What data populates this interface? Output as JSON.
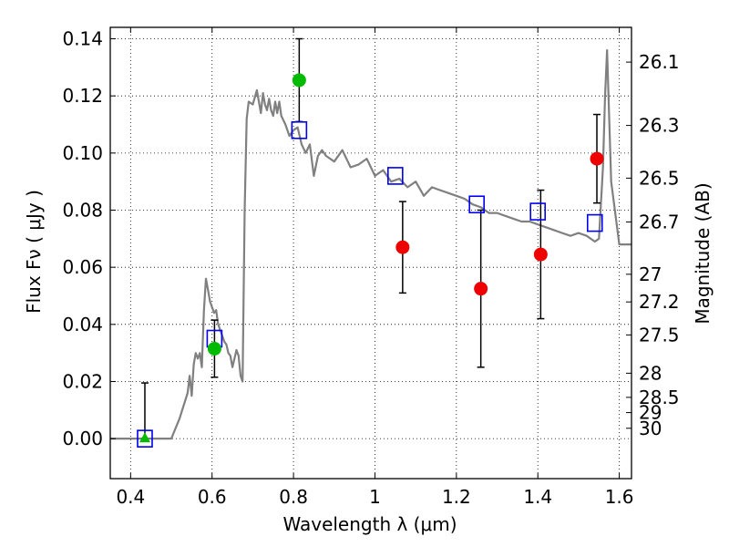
{
  "chart_data": {
    "type": "scatter",
    "xlabel": "Wavelength  λ (μm)",
    "ylabel_left": "Flux  Fν  ( μJy )",
    "ylabel_right": "Magnitude (AB)",
    "xlim": [
      0.35,
      1.63
    ],
    "ylim": [
      -0.014,
      0.144
    ],
    "grid": true,
    "x_ticks": [
      {
        "value": 0.4,
        "label": "0.4"
      },
      {
        "value": 0.6,
        "label": "0.6"
      },
      {
        "value": 0.8,
        "label": "0.8"
      },
      {
        "value": 1.0,
        "label": "1"
      },
      {
        "value": 1.2,
        "label": "1.2"
      },
      {
        "value": 1.4,
        "label": "1.4"
      },
      {
        "value": 1.6,
        "label": "1.6"
      }
    ],
    "y_ticks": [
      {
        "value": 0.0,
        "label": "0.00"
      },
      {
        "value": 0.02,
        "label": "0.02"
      },
      {
        "value": 0.04,
        "label": "0.04"
      },
      {
        "value": 0.06,
        "label": "0.06"
      },
      {
        "value": 0.08,
        "label": "0.08"
      },
      {
        "value": 0.1,
        "label": "0.10"
      },
      {
        "value": 0.12,
        "label": "0.12"
      },
      {
        "value": 0.14,
        "label": "0.14"
      }
    ],
    "mag_ticks": [
      {
        "value": 26.1,
        "label": "26.1"
      },
      {
        "value": 26.3,
        "label": "26.3"
      },
      {
        "value": 26.5,
        "label": "26.5"
      },
      {
        "value": 26.7,
        "label": "26.7"
      },
      {
        "value": 27.0,
        "label": "27"
      },
      {
        "value": 27.2,
        "label": "27.2"
      },
      {
        "value": 27.5,
        "label": "27.5"
      },
      {
        "value": 28.0,
        "label": "28"
      },
      {
        "value": 28.5,
        "label": "28.5"
      },
      {
        "value": 29.0,
        "label": "29"
      },
      {
        "value": 30.0,
        "label": "30"
      }
    ],
    "model_spectrum": {
      "name": "SED model",
      "color": "#808080",
      "x": [
        0.35,
        0.5,
        0.52,
        0.54,
        0.545,
        0.55,
        0.555,
        0.56,
        0.565,
        0.57,
        0.575,
        0.58,
        0.585,
        0.59,
        0.595,
        0.6,
        0.605,
        0.61,
        0.615,
        0.62,
        0.625,
        0.63,
        0.635,
        0.64,
        0.645,
        0.65,
        0.655,
        0.66,
        0.665,
        0.67,
        0.675,
        0.68,
        0.685,
        0.69,
        0.7,
        0.71,
        0.715,
        0.72,
        0.725,
        0.73,
        0.735,
        0.74,
        0.745,
        0.75,
        0.755,
        0.76,
        0.765,
        0.77,
        0.78,
        0.79,
        0.8,
        0.81,
        0.82,
        0.83,
        0.84,
        0.85,
        0.86,
        0.87,
        0.88,
        0.9,
        0.92,
        0.94,
        0.96,
        0.98,
        1.0,
        1.02,
        1.04,
        1.06,
        1.08,
        1.1,
        1.12,
        1.14,
        1.16,
        1.18,
        1.2,
        1.22,
        1.24,
        1.26,
        1.28,
        1.3,
        1.32,
        1.34,
        1.36,
        1.38,
        1.4,
        1.42,
        1.44,
        1.46,
        1.48,
        1.5,
        1.52,
        1.54,
        1.55,
        1.56,
        1.565,
        1.57,
        1.58,
        1.6,
        1.63
      ],
      "y": [
        0.0,
        0.0,
        0.007,
        0.016,
        0.022,
        0.015,
        0.026,
        0.03,
        0.028,
        0.03,
        0.025,
        0.045,
        0.056,
        0.052,
        0.048,
        0.046,
        0.044,
        0.045,
        0.04,
        0.038,
        0.036,
        0.034,
        0.033,
        0.03,
        0.029,
        0.025,
        0.028,
        0.031,
        0.029,
        0.022,
        0.02,
        0.08,
        0.112,
        0.118,
        0.117,
        0.122,
        0.118,
        0.114,
        0.121,
        0.117,
        0.115,
        0.119,
        0.115,
        0.113,
        0.118,
        0.114,
        0.118,
        0.113,
        0.11,
        0.106,
        0.108,
        0.109,
        0.103,
        0.1,
        0.103,
        0.092,
        0.099,
        0.101,
        0.099,
        0.097,
        0.101,
        0.095,
        0.096,
        0.098,
        0.092,
        0.094,
        0.09,
        0.091,
        0.088,
        0.09,
        0.085,
        0.088,
        0.087,
        0.086,
        0.085,
        0.084,
        0.082,
        0.081,
        0.079,
        0.079,
        0.078,
        0.077,
        0.076,
        0.076,
        0.075,
        0.074,
        0.073,
        0.072,
        0.071,
        0.072,
        0.071,
        0.069,
        0.07,
        0.095,
        0.12,
        0.136,
        0.09,
        0.068,
        0.068
      ]
    },
    "model_photometry": {
      "name": "Model band fluxes",
      "marker": "open-square",
      "color": "#0000ee",
      "x": [
        0.435,
        0.606,
        0.814,
        1.05,
        1.25,
        1.4,
        1.54
      ],
      "y": [
        0.0,
        0.035,
        0.108,
        0.092,
        0.082,
        0.0795,
        0.0755
      ]
    },
    "observed_photometry": [
      {
        "name": "Observed (green)",
        "marker": "circle",
        "color": "#00bb00",
        "x": [
          0.606,
          0.814
        ],
        "y": [
          0.0315,
          0.1255
        ],
        "yerr": [
          0.01,
          0.0145
        ]
      },
      {
        "name": "Observed (red)",
        "marker": "circle",
        "color": "#ee0000",
        "x": [
          1.068,
          1.26,
          1.407,
          1.545
        ],
        "y": [
          0.067,
          0.0525,
          0.0645,
          0.098
        ],
        "yerr": [
          0.016,
          0.0275,
          0.0225,
          0.0155
        ]
      },
      {
        "name": "Upper limit",
        "marker": "triangle",
        "color": "#00bb00",
        "x": [
          0.435
        ],
        "y": [
          0.0
        ],
        "yerr": [
          0.0195
        ]
      }
    ]
  }
}
